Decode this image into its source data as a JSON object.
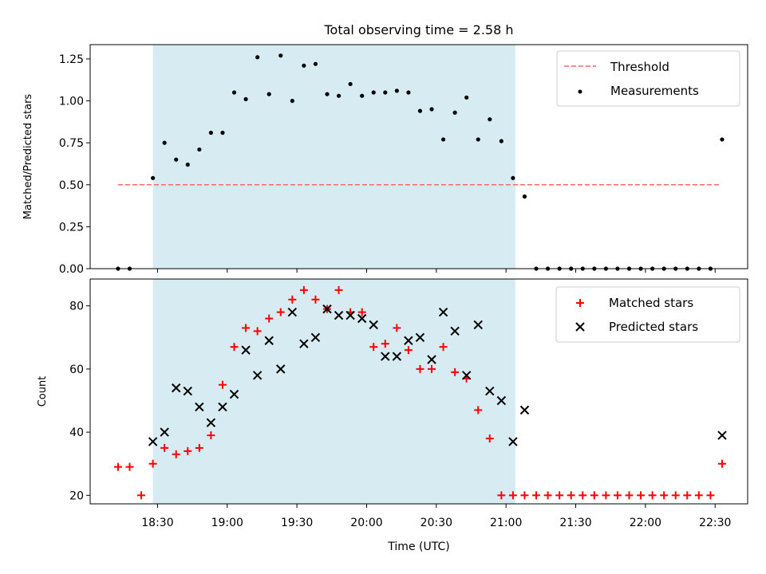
{
  "title": "Total observing time = 2.58 h",
  "colors": {
    "shade": "#add8e6",
    "threshold": "#ff6666",
    "matched": "#ff0000",
    "predicted": "#000000",
    "measure": "#000000"
  },
  "chart_data": [
    {
      "type": "scatter",
      "title": "Total observing time = 2.58 h",
      "ylabel": "Matched/Predicted stars",
      "xlim": [
        18.0167,
        22.7333
      ],
      "ylim": [
        0,
        1.335
      ],
      "yticks": [
        0,
        0.25,
        0.5,
        0.75,
        1.0,
        1.25
      ],
      "ytick_labels": [
        "0.00",
        "0.25",
        "0.50",
        "0.75",
        "1.00",
        "1.25"
      ],
      "shaded_span": [
        18.4667,
        21.0667
      ],
      "threshold": {
        "label": "Threshold",
        "y": 0.5,
        "x": [
          18.2167,
          22.5333
        ]
      },
      "legend_position": "top-right",
      "series": [
        {
          "name": "Measurements",
          "x": [
            18.2167,
            18.3,
            18.4667,
            18.55,
            18.6333,
            18.7167,
            18.8,
            18.8833,
            18.9667,
            19.05,
            19.1333,
            19.2167,
            19.3,
            19.3833,
            19.4667,
            19.55,
            19.6333,
            19.7167,
            19.8,
            19.8833,
            19.9667,
            20.05,
            20.1333,
            20.2167,
            20.3,
            20.3833,
            20.4667,
            20.55,
            20.6333,
            20.7167,
            20.8,
            20.8833,
            20.9667,
            21.05,
            21.1333,
            21.2167,
            21.3,
            21.3833,
            21.4667,
            21.55,
            21.6333,
            21.7167,
            21.8,
            21.8833,
            21.9667,
            22.05,
            22.1333,
            22.2167,
            22.3,
            22.3833,
            22.4667,
            22.55
          ],
          "values": [
            0,
            0,
            0.54,
            0.75,
            0.65,
            0.62,
            0.71,
            0.81,
            0.81,
            1.05,
            1.01,
            1.26,
            1.04,
            1.27,
            1.0,
            1.21,
            1.22,
            1.04,
            1.03,
            1.1,
            1.03,
            1.05,
            1.05,
            1.06,
            1.05,
            0.94,
            0.95,
            0.77,
            0.93,
            1.02,
            0.77,
            0.89,
            0.76,
            0.54,
            0.43,
            0,
            0,
            0,
            0,
            0,
            0,
            0,
            0,
            0,
            0,
            0,
            0,
            0,
            0,
            0,
            0,
            0.77
          ]
        }
      ]
    },
    {
      "type": "scatter",
      "xlabel": "Time (UTC)",
      "ylabel": "Count",
      "xlim": [
        18.0167,
        22.7333
      ],
      "ylim": [
        17.3,
        88.5
      ],
      "xticks": [
        18.5,
        19.0,
        19.5,
        20.0,
        20.5,
        21.0,
        21.5,
        22.0,
        22.5
      ],
      "xtick_labels": [
        "18:30",
        "19:00",
        "19:30",
        "20:00",
        "20:30",
        "21:00",
        "21:30",
        "22:00",
        "22:30"
      ],
      "yticks": [
        20,
        40,
        60,
        80
      ],
      "ytick_labels": [
        "20",
        "40",
        "60",
        "80"
      ],
      "shaded_span": [
        18.4667,
        21.0667
      ],
      "legend_position": "top-right",
      "series": [
        {
          "name": "Matched stars",
          "marker": "plus",
          "x": [
            18.2167,
            18.3,
            18.3833,
            18.4667,
            18.55,
            18.6333,
            18.7167,
            18.8,
            18.8833,
            18.9667,
            19.05,
            19.1333,
            19.2167,
            19.3,
            19.3833,
            19.4667,
            19.55,
            19.6333,
            19.7167,
            19.8,
            19.8833,
            19.9667,
            20.05,
            20.1333,
            20.2167,
            20.3,
            20.3833,
            20.4667,
            20.55,
            20.6333,
            20.7167,
            20.8,
            20.8833,
            20.9667,
            21.05,
            21.1333,
            21.2167,
            21.3,
            21.3833,
            21.4667,
            21.55,
            21.6333,
            21.7167,
            21.8,
            21.8833,
            21.9667,
            22.05,
            22.1333,
            22.2167,
            22.3,
            22.3833,
            22.4667,
            22.55
          ],
          "values": [
            29,
            29,
            20,
            30,
            35,
            33,
            34,
            35,
            39,
            55,
            67,
            73,
            72,
            76,
            78,
            82,
            85,
            82,
            79,
            85,
            78,
            78,
            67,
            68,
            73,
            66,
            60,
            60,
            67,
            59,
            57,
            47,
            38,
            20,
            20,
            20,
            20,
            20,
            20,
            20,
            20,
            20,
            20,
            20,
            20,
            20,
            20,
            20,
            20,
            20,
            20,
            20,
            30
          ]
        },
        {
          "name": "Predicted stars",
          "marker": "x",
          "x": [
            18.4667,
            18.55,
            18.6333,
            18.7167,
            18.8,
            18.8833,
            18.9667,
            19.05,
            19.1333,
            19.2167,
            19.3,
            19.3833,
            19.4667,
            19.55,
            19.6333,
            19.7167,
            19.8,
            19.8833,
            19.9667,
            20.05,
            20.1333,
            20.2167,
            20.3,
            20.3833,
            20.4667,
            20.55,
            20.6333,
            20.7167,
            20.8,
            20.8833,
            20.9667,
            21.05,
            21.1333,
            22.55
          ],
          "values": [
            37,
            40,
            54,
            53,
            48,
            43,
            48,
            52,
            66,
            58,
            69,
            60,
            78,
            68,
            70,
            79,
            77,
            77,
            76,
            74,
            64,
            64,
            69,
            70,
            63,
            78,
            72,
            58,
            74,
            53,
            50,
            37,
            47,
            39
          ]
        }
      ]
    }
  ]
}
